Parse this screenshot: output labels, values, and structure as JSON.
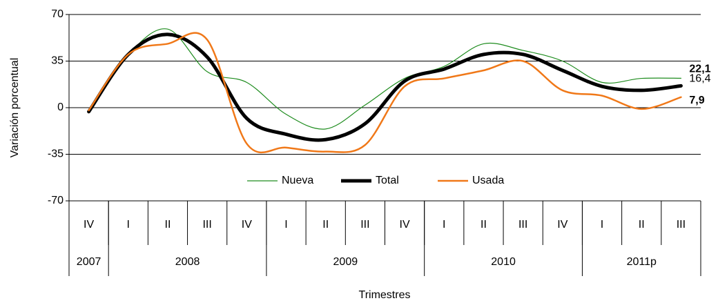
{
  "chart_data": {
    "type": "line",
    "y_label": "Variación porcentual",
    "x_label": "Trimestres",
    "categories": [
      "IV",
      "I",
      "II",
      "III",
      "IV",
      "I",
      "II",
      "III",
      "IV",
      "I",
      "II",
      "III",
      "IV",
      "I",
      "II",
      "III"
    ],
    "groups": [
      {
        "label": "2007",
        "span": 1
      },
      {
        "label": "2008",
        "span": 4
      },
      {
        "label": "2009",
        "span": 4
      },
      {
        "label": "2010",
        "span": 4
      },
      {
        "label": "2011p",
        "span": 3
      }
    ],
    "series": [
      {
        "name": "Nueva",
        "color": "#1e8c1e",
        "width": 1.2,
        "values": [
          -2,
          40,
          59,
          27,
          19,
          -5,
          -16,
          2,
          22,
          31,
          48,
          43,
          35,
          19,
          22,
          22.1
        ],
        "value_labels": [
          null,
          null,
          null,
          null,
          null,
          null,
          null,
          null,
          null,
          null,
          null,
          null,
          null,
          null,
          null,
          "22,1"
        ]
      },
      {
        "name": "Total",
        "color": "#000000",
        "width": 5,
        "values": [
          -3,
          40,
          55,
          38,
          -8,
          -20,
          -24,
          -12,
          20,
          29,
          40,
          40,
          28,
          16,
          13,
          16.4
        ],
        "value_labels": [
          null,
          null,
          null,
          null,
          null,
          null,
          null,
          null,
          null,
          null,
          null,
          null,
          null,
          null,
          null,
          "16,4"
        ]
      },
      {
        "name": "Usada",
        "color": "#f07818",
        "width": 2.5,
        "values": [
          -2,
          40,
          48,
          51,
          -27,
          -30,
          -33,
          -28,
          16,
          22,
          28,
          35,
          13,
          9,
          -1,
          7.9
        ],
        "value_labels": [
          null,
          null,
          null,
          null,
          null,
          null,
          null,
          null,
          null,
          null,
          null,
          null,
          null,
          null,
          null,
          "7,9"
        ]
      }
    ],
    "ylim": [
      -70,
      70
    ],
    "yticks": [
      -70,
      -35,
      0,
      35,
      70
    ],
    "grid": true,
    "legend": "bottom"
  }
}
